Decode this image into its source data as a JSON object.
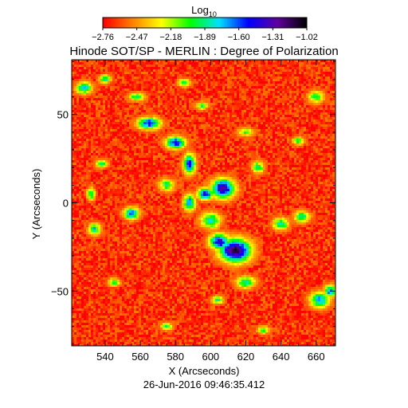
{
  "chart_data": {
    "type": "heatmap",
    "title": "Hinode SOT/SP - MERLIN : Degree of Polarization",
    "xlabel": "X (Arcseconds)",
    "ylabel": "Y (Arcseconds)",
    "footer": "26-Jun-2016 09:46:35.412",
    "xlim": [
      521,
      671
    ],
    "ylim": [
      -81,
      81
    ],
    "xticks": [
      540,
      560,
      580,
      600,
      620,
      640,
      660
    ],
    "yticks": [
      -50,
      0,
      50
    ],
    "colorbar": {
      "label_base": "Log",
      "label_sub": "10",
      "ticks": [
        "-2.76",
        "-2.47",
        "-2.18",
        "-1.89",
        "-1.60",
        "-1.31",
        "-1.02"
      ],
      "range": [
        -2.76,
        -1.02
      ],
      "colors": [
        "#ff0000",
        "#ff8000",
        "#ffff00",
        "#00ff00",
        "#00e0ff",
        "#0000ff",
        "#6000a0",
        "#000000"
      ]
    },
    "background_level": -2.65,
    "features": [
      {
        "x": 614,
        "y": -27,
        "rx": 8,
        "ry": 6,
        "level": -1.1
      },
      {
        "x": 605,
        "y": -22,
        "rx": 5,
        "ry": 4,
        "level": -1.35
      },
      {
        "x": 607,
        "y": 8,
        "rx": 6,
        "ry": 5,
        "level": -1.3
      },
      {
        "x": 597,
        "y": 5,
        "rx": 4,
        "ry": 3,
        "level": -1.45
      },
      {
        "x": 588,
        "y": 22,
        "rx": 3,
        "ry": 5,
        "level": -1.45
      },
      {
        "x": 580,
        "y": 34,
        "rx": 5,
        "ry": 3,
        "level": -1.45
      },
      {
        "x": 565,
        "y": 45,
        "rx": 6,
        "ry": 3,
        "level": -1.5
      },
      {
        "x": 555,
        "y": -6,
        "rx": 4,
        "ry": 3,
        "level": -1.6
      },
      {
        "x": 588,
        "y": 0,
        "rx": 3,
        "ry": 4,
        "level": -1.6
      },
      {
        "x": 600,
        "y": -10,
        "rx": 5,
        "ry": 4,
        "level": -1.8
      },
      {
        "x": 640,
        "y": -12,
        "rx": 4,
        "ry": 3,
        "level": -1.8
      },
      {
        "x": 652,
        "y": -8,
        "rx": 4,
        "ry": 3,
        "level": -1.9
      },
      {
        "x": 534,
        "y": -15,
        "rx": 3,
        "ry": 3,
        "level": -1.8
      },
      {
        "x": 532,
        "y": 5,
        "rx": 2,
        "ry": 3,
        "level": -1.8
      },
      {
        "x": 538,
        "y": 22,
        "rx": 3,
        "ry": 2,
        "level": -1.9
      },
      {
        "x": 528,
        "y": 65,
        "rx": 4,
        "ry": 3,
        "level": -1.75
      },
      {
        "x": 540,
        "y": 70,
        "rx": 3,
        "ry": 2,
        "level": -1.8
      },
      {
        "x": 558,
        "y": 60,
        "rx": 4,
        "ry": 2,
        "level": -1.9
      },
      {
        "x": 585,
        "y": 68,
        "rx": 3,
        "ry": 2,
        "level": -1.9
      },
      {
        "x": 595,
        "y": 55,
        "rx": 3,
        "ry": 2,
        "level": -2.0
      },
      {
        "x": 627,
        "y": 20,
        "rx": 3,
        "ry": 3,
        "level": -1.9
      },
      {
        "x": 620,
        "y": -45,
        "rx": 5,
        "ry": 3,
        "level": -1.85
      },
      {
        "x": 604,
        "y": -55,
        "rx": 3,
        "ry": 2,
        "level": -1.9
      },
      {
        "x": 662,
        "y": -55,
        "rx": 5,
        "ry": 4,
        "level": -1.7
      },
      {
        "x": 668,
        "y": -50,
        "rx": 3,
        "ry": 3,
        "level": -1.6
      },
      {
        "x": 660,
        "y": 60,
        "rx": 4,
        "ry": 3,
        "level": -1.95
      },
      {
        "x": 650,
        "y": 35,
        "rx": 3,
        "ry": 2,
        "level": -2.0
      },
      {
        "x": 545,
        "y": -45,
        "rx": 3,
        "ry": 2,
        "level": -2.0
      },
      {
        "x": 575,
        "y": -70,
        "rx": 3,
        "ry": 2,
        "level": -2.0
      },
      {
        "x": 630,
        "y": -72,
        "rx": 3,
        "ry": 2,
        "level": -2.0
      },
      {
        "x": 620,
        "y": 40,
        "rx": 4,
        "ry": 2,
        "level": -2.0
      },
      {
        "x": 575,
        "y": 10,
        "rx": 4,
        "ry": 3,
        "level": -1.95
      }
    ]
  }
}
